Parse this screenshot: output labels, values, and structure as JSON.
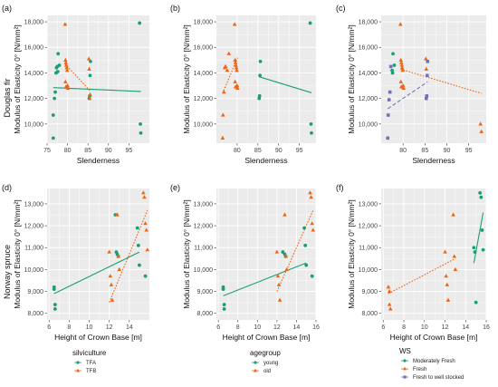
{
  "figure": {
    "row_labels": [
      "Douglas fir",
      "Norway spruce"
    ],
    "colors": {
      "TFA": "#1b9e77",
      "TFB": "#f06414",
      "young": "#1b9e77",
      "old": "#f06414",
      "Moderately Fresh": "#1b9e77",
      "Fresh": "#f06414",
      "Fresh to well stocked": "#7570b3",
      "panel_bg": "#ebebeb",
      "grid": "#ffffff"
    }
  },
  "legends": [
    {
      "title": "silviculture",
      "items": [
        "TFA",
        "TFB"
      ]
    },
    {
      "title": "agegroup",
      "items": [
        "young",
        "old"
      ]
    },
    {
      "title": "WS",
      "items": [
        "Moderately Fresh",
        "Fresh",
        "Fresh to well stocked"
      ]
    }
  ],
  "chart_data": [
    {
      "panel": "(a)",
      "type": "scatter",
      "xlabel": "Slenderness",
      "ylabel": "Modulus of Elasticity 0° [N/mm²]",
      "xlim": [
        75,
        100
      ],
      "ylim": [
        8500,
        18500
      ],
      "xticks": [
        75,
        80,
        85,
        90,
        95
      ],
      "xtick_labels": [
        "75",
        "80",
        "85",
        "90",
        "95"
      ],
      "yticks": [
        10000,
        12000,
        14000,
        16000,
        18000
      ],
      "ytick_labels": [
        "10,000",
        "12,000",
        "14,000",
        "16,000",
        "18,000"
      ],
      "series": [
        {
          "name": "TFA",
          "shape": "circle",
          "x": [
            76.5,
            76.5,
            76.8,
            77.0,
            77.2,
            77.3,
            77.5,
            77.6,
            77.7,
            78.0,
            85.3,
            85.4,
            85.5,
            85.6,
            97.6,
            97.8,
            97.9
          ],
          "y": [
            8900,
            10700,
            12000,
            12500,
            14000,
            14400,
            14500,
            14100,
            15500,
            14600,
            12000,
            12200,
            13800,
            14900,
            17900,
            10000,
            9300
          ]
        },
        {
          "name": "TFB",
          "shape": "triangle",
          "x": [
            79.4,
            79.5,
            79.6,
            79.7,
            79.8,
            79.9,
            80.0,
            80.1,
            79.5,
            79.6,
            85.2,
            85.3,
            85.4,
            85.5
          ],
          "y": [
            17800,
            15000,
            14800,
            14600,
            14400,
            14200,
            13000,
            12800,
            13300,
            12900,
            15100,
            14300,
            12000,
            12300
          ]
        }
      ],
      "fits": [
        {
          "series": "TFA",
          "style": "solid",
          "x": [
            76.5,
            97.9
          ],
          "y": [
            12850,
            12550
          ]
        },
        {
          "series": "TFB",
          "style": "dotted",
          "x": [
            79.4,
            85.5
          ],
          "y": [
            14700,
            12600
          ]
        }
      ]
    },
    {
      "panel": "(b)",
      "type": "scatter",
      "xlabel": "Slenderness",
      "ylabel": "Modulus of Elasticity 0° [N/mm²]",
      "xlim": [
        75,
        99
      ],
      "ylim": [
        8500,
        18500
      ],
      "xticks": [
        80,
        85,
        90,
        95
      ],
      "xtick_labels": [
        "80",
        "85",
        "90",
        "95"
      ],
      "yticks": [
        10000,
        12000,
        14000,
        16000,
        18000
      ],
      "ytick_labels": [
        "10,000",
        "12,000",
        "14,000",
        "16,000",
        "18,000"
      ],
      "series": [
        {
          "name": "old",
          "shape": "triangle",
          "x": [
            76.5,
            76.6,
            76.8,
            77.0,
            77.2,
            77.6,
            78.0,
            79.4,
            79.5,
            79.6,
            79.7,
            79.8,
            79.9,
            80.0,
            80.1,
            79.5,
            79.6
          ],
          "y": [
            8900,
            10700,
            12500,
            14400,
            14500,
            14200,
            15500,
            17800,
            15000,
            14800,
            14600,
            14400,
            14200,
            13000,
            12800,
            13300,
            12900
          ]
        },
        {
          "name": "young",
          "shape": "circle",
          "x": [
            85.3,
            85.4,
            85.5,
            85.6,
            97.6,
            97.8,
            97.9
          ],
          "y": [
            12000,
            12200,
            13800,
            14900,
            17900,
            10000,
            9300
          ]
        }
      ],
      "fits": [
        {
          "series": "old",
          "style": "dotted",
          "x": [
            76.5,
            80.1
          ],
          "y": [
            12400,
            15200
          ]
        },
        {
          "series": "young",
          "style": "solid",
          "x": [
            85.3,
            97.9
          ],
          "y": [
            13700,
            12450
          ]
        }
      ]
    },
    {
      "panel": "(c)",
      "type": "scatter",
      "xlabel": "Slenderness",
      "ylabel": "Modulus of Elasticity 0° [N/mm²]",
      "xlim": [
        75,
        99
      ],
      "ylim": [
        8500,
        18500
      ],
      "xticks": [
        80,
        85,
        90,
        95
      ],
      "xtick_labels": [
        "80",
        "85",
        "90",
        "95"
      ],
      "yticks": [
        10000,
        12000,
        14000,
        16000,
        18000
      ],
      "ytick_labels": [
        "10,000",
        "12,000",
        "14,000",
        "16,000",
        "18,000"
      ],
      "series": [
        {
          "name": "Moderately Fresh",
          "shape": "circle",
          "x": [
            77.5,
            77.6,
            77.7,
            78.0
          ],
          "y": [
            14200,
            14000,
            15500,
            14600
          ]
        },
        {
          "name": "Fresh",
          "shape": "triangle",
          "x": [
            79.4,
            79.5,
            79.6,
            79.7,
            79.8,
            79.9,
            80.0,
            80.1,
            79.5,
            79.6,
            85.2,
            85.3,
            97.7,
            97.9
          ],
          "y": [
            17800,
            15000,
            14800,
            14600,
            14400,
            14200,
            13000,
            12800,
            13300,
            12900,
            15100,
            14300,
            10000,
            9400
          ]
        },
        {
          "name": "Fresh to well stocked",
          "shape": "square",
          "x": [
            76.5,
            76.6,
            76.8,
            77.0,
            77.2,
            85.3,
            85.4,
            85.5,
            85.6
          ],
          "y": [
            8900,
            10700,
            11900,
            12500,
            14500,
            12000,
            12200,
            13800,
            14900
          ]
        }
      ],
      "fits": [
        {
          "series": "Fresh",
          "style": "dotted",
          "x": [
            79.4,
            97.9
          ],
          "y": [
            14300,
            12400
          ]
        },
        {
          "series": "Fresh to well stocked",
          "style": "dashed",
          "x": [
            76.5,
            85.6
          ],
          "y": [
            11200,
            13300
          ]
        }
      ]
    },
    {
      "panel": "(d)",
      "type": "scatter",
      "xlabel": "Height of Crown Base [m]",
      "ylabel": "Modulus of Elasticity 0° [N/mm²]",
      "xlim": [
        5.8,
        16.0
      ],
      "ylim": [
        7700,
        13700
      ],
      "xticks": [
        6,
        8,
        10,
        12,
        14
      ],
      "xtick_labels": [
        "6",
        "8",
        "10",
        "12",
        "14"
      ],
      "yticks": [
        8000,
        9000,
        10000,
        11000,
        12000,
        13000
      ],
      "ytick_labels": [
        "8,000",
        "9,000",
        "10,000",
        "11,000",
        "12,000",
        "13,000"
      ],
      "series": [
        {
          "name": "TFA",
          "shape": "circle",
          "x": [
            6.5,
            6.5,
            6.6,
            6.6,
            12.6,
            12.7,
            12.8,
            12.9,
            14.8,
            14.9,
            15.0,
            15.6
          ],
          "y": [
            9200,
            9100,
            8400,
            8200,
            12500,
            10800,
            10700,
            10600,
            11900,
            11100,
            10200,
            9700
          ]
        },
        {
          "name": "TFB",
          "shape": "triangle",
          "x": [
            12.0,
            12.1,
            12.2,
            12.3,
            12.8,
            12.9,
            13.0,
            15.4,
            15.5,
            15.6,
            15.7,
            15.8
          ],
          "y": [
            10800,
            9700,
            9300,
            8600,
            12500,
            10600,
            10000,
            13500,
            13300,
            12100,
            11800,
            10900
          ]
        }
      ],
      "fits": [
        {
          "series": "TFA",
          "style": "solid",
          "x": [
            6.5,
            15.0
          ],
          "y": [
            8900,
            10800
          ]
        },
        {
          "series": "TFB",
          "style": "dotted",
          "x": [
            12.0,
            15.8
          ],
          "y": [
            8500,
            12700
          ]
        }
      ]
    },
    {
      "panel": "(e)",
      "type": "scatter",
      "xlabel": "Height of Crown Base [m]",
      "ylabel": "Modulus of Elasticity 0° [N/mm²]",
      "xlim": [
        5.8,
        16.0
      ],
      "ylim": [
        7700,
        13700
      ],
      "xticks": [
        6,
        8,
        10,
        12,
        14,
        16
      ],
      "xtick_labels": [
        "6",
        "8",
        "10",
        "12",
        "14",
        "16"
      ],
      "yticks": [
        8000,
        9000,
        10000,
        11000,
        12000,
        13000
      ],
      "ytick_labels": [
        "8,000",
        "9,000",
        "10,000",
        "11,000",
        "12,000",
        "13,000"
      ],
      "series": [
        {
          "name": "young",
          "shape": "circle",
          "x": [
            6.5,
            6.5,
            6.6,
            6.6,
            12.6,
            12.8,
            12.9,
            14.8,
            14.9,
            15.0,
            15.6
          ],
          "y": [
            9200,
            9100,
            8400,
            8200,
            10800,
            10700,
            10600,
            11900,
            11100,
            10200,
            9700
          ]
        },
        {
          "name": "old",
          "shape": "triangle",
          "x": [
            12.0,
            12.1,
            12.2,
            12.3,
            12.8,
            12.9,
            13.0,
            15.4,
            15.5,
            15.6,
            15.7
          ],
          "y": [
            10800,
            9700,
            9300,
            8600,
            12500,
            10600,
            10000,
            13500,
            13300,
            12100,
            11800
          ]
        }
      ],
      "fits": [
        {
          "series": "young",
          "style": "solid",
          "x": [
            6.5,
            15.0
          ],
          "y": [
            8800,
            10300
          ]
        },
        {
          "series": "old",
          "style": "dotted",
          "x": [
            12.0,
            15.7
          ],
          "y": [
            9000,
            12700
          ]
        }
      ]
    },
    {
      "panel": "(f)",
      "type": "scatter",
      "xlabel": "Height of Crown Base [m]",
      "ylabel": "Modulus of Elasticity 0° [N/mm²]",
      "xlim": [
        5.8,
        16.0
      ],
      "ylim": [
        7700,
        13700
      ],
      "xticks": [
        6,
        8,
        10,
        12,
        14,
        16
      ],
      "xtick_labels": [
        "6",
        "8",
        "10",
        "12",
        "14",
        "16"
      ],
      "yticks": [
        8000,
        9000,
        10000,
        11000,
        12000,
        13000
      ],
      "ytick_labels": [
        "8,000",
        "9,000",
        "10,000",
        "11,000",
        "12,000",
        "13,000"
      ],
      "series": [
        {
          "name": "Moderately Fresh",
          "shape": "circle",
          "x": [
            14.8,
            14.9,
            15.0,
            15.4,
            15.5,
            15.6,
            15.7
          ],
          "y": [
            11000,
            10800,
            8500,
            13500,
            13300,
            11800,
            10900
          ]
        },
        {
          "name": "Fresh",
          "shape": "triangle",
          "x": [
            6.5,
            6.6,
            6.6,
            6.7,
            12.0,
            12.1,
            12.2,
            12.3,
            12.8,
            12.9,
            13.0
          ],
          "y": [
            9200,
            9000,
            8400,
            8200,
            10800,
            9700,
            9300,
            8600,
            12500,
            10600,
            10000
          ]
        }
      ],
      "fits": [
        {
          "series": "Fresh",
          "style": "dotted",
          "x": [
            6.5,
            13.0
          ],
          "y": [
            8900,
            10500
          ]
        },
        {
          "series": "Moderately Fresh",
          "style": "solid",
          "x": [
            14.8,
            15.7
          ],
          "y": [
            10300,
            12600
          ]
        }
      ]
    }
  ]
}
